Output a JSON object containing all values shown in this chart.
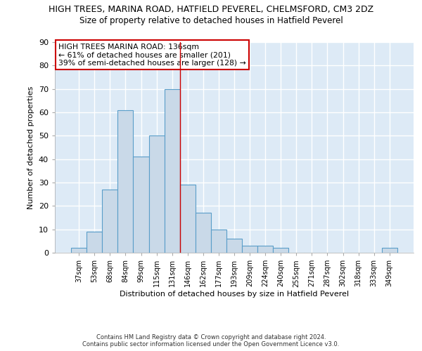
{
  "title": "HIGH TREES, MARINA ROAD, HATFIELD PEVEREL, CHELMSFORD, CM3 2DZ",
  "subtitle": "Size of property relative to detached houses in Hatfield Peverel",
  "xlabel": "Distribution of detached houses by size in Hatfield Peverel",
  "ylabel": "Number of detached properties",
  "bar_labels": [
    "37sqm",
    "53sqm",
    "68sqm",
    "84sqm",
    "99sqm",
    "115sqm",
    "131sqm",
    "146sqm",
    "162sqm",
    "177sqm",
    "193sqm",
    "209sqm",
    "224sqm",
    "240sqm",
    "255sqm",
    "271sqm",
    "287sqm",
    "302sqm",
    "318sqm",
    "333sqm",
    "349sqm"
  ],
  "bar_values": [
    2,
    9,
    27,
    61,
    41,
    50,
    70,
    29,
    17,
    10,
    6,
    3,
    3,
    2,
    0,
    0,
    0,
    0,
    0,
    0,
    2
  ],
  "bar_color": "#c9d9e8",
  "bar_edge_color": "#5a9ec9",
  "ylim": [
    0,
    90
  ],
  "yticks": [
    0,
    10,
    20,
    30,
    40,
    50,
    60,
    70,
    80,
    90
  ],
  "red_line_x": 6.5,
  "annotation_title": "HIGH TREES MARINA ROAD: 136sqm",
  "annotation_line2": "← 61% of detached houses are smaller (201)",
  "annotation_line3": "39% of semi-detached houses are larger (128) →",
  "annotation_box_color": "#ffffff",
  "annotation_box_edge": "#cc0000",
  "background_color": "#ddeaf6",
  "grid_color": "#ffffff",
  "title_fontsize": 9,
  "subtitle_fontsize": 8.5,
  "footer_line1": "Contains HM Land Registry data © Crown copyright and database right 2024.",
  "footer_line2": "Contains public sector information licensed under the Open Government Licence v3.0."
}
